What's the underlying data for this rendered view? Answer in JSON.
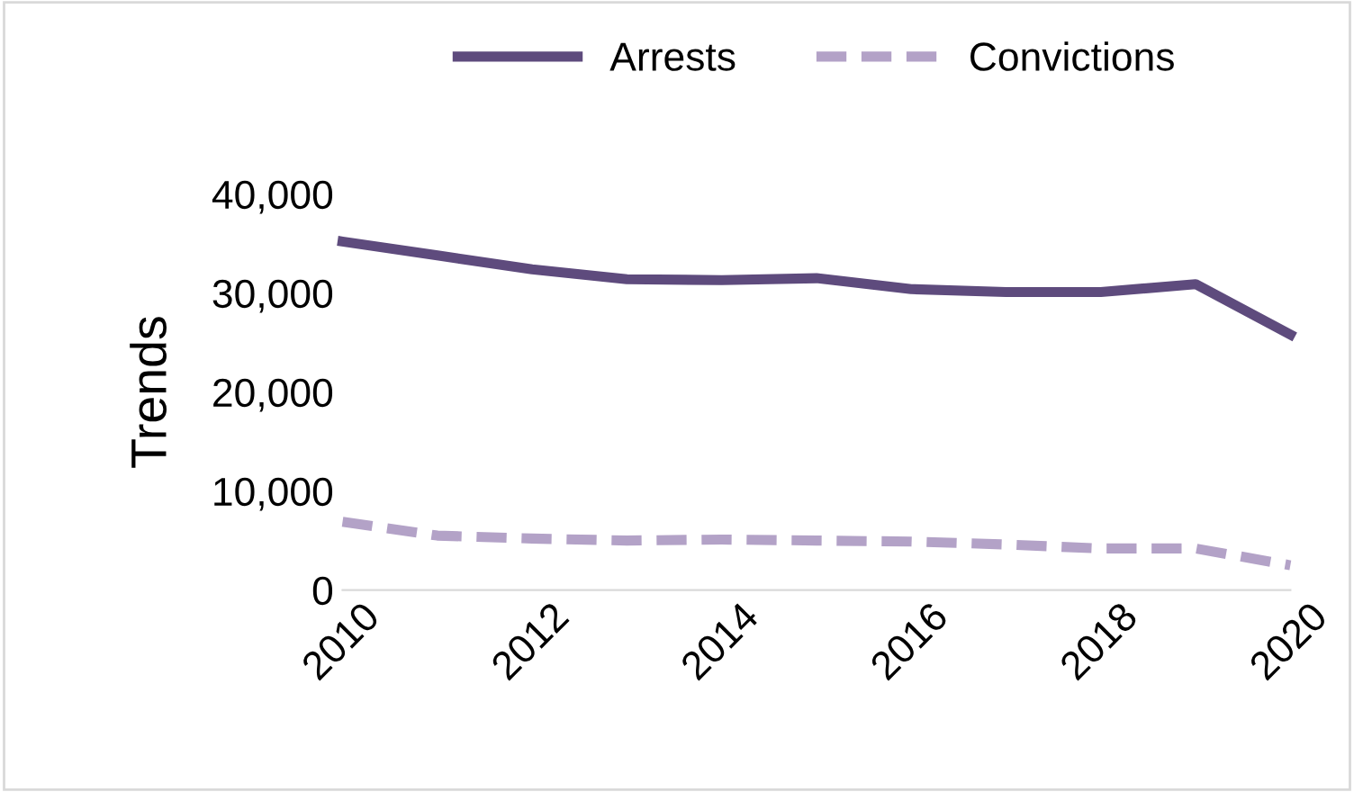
{
  "chart_data": {
    "type": "line",
    "ylabel": "Trends",
    "x": [
      2010,
      2011,
      2012,
      2013,
      2014,
      2015,
      2016,
      2017,
      2018,
      2019,
      2020
    ],
    "series": [
      {
        "name": "Arrests",
        "color": "#5e4b7d",
        "line_style": "solid",
        "values": [
          35200,
          33800,
          32400,
          31400,
          31300,
          31500,
          30400,
          30100,
          30100,
          30900,
          25800
        ]
      },
      {
        "name": "Convictions",
        "color": "#b3a2c7",
        "line_style": "dashed",
        "values": [
          6900,
          5500,
          5200,
          5000,
          5100,
          5000,
          4900,
          4600,
          4200,
          4200,
          2500
        ]
      }
    ],
    "xlim": [
      2010,
      2020
    ],
    "xticks": [
      2010,
      2012,
      2014,
      2016,
      2018,
      2020
    ],
    "ylim": [
      0,
      40000
    ],
    "yticks": [
      {
        "value": 0,
        "label": "0"
      },
      {
        "value": 10000,
        "label": "10,000"
      },
      {
        "value": 20000,
        "label": "20,000"
      },
      {
        "value": 30000,
        "label": "30,000"
      },
      {
        "value": 40000,
        "label": "40,000"
      }
    ],
    "grid": false,
    "legend": "top",
    "marker": "none"
  }
}
